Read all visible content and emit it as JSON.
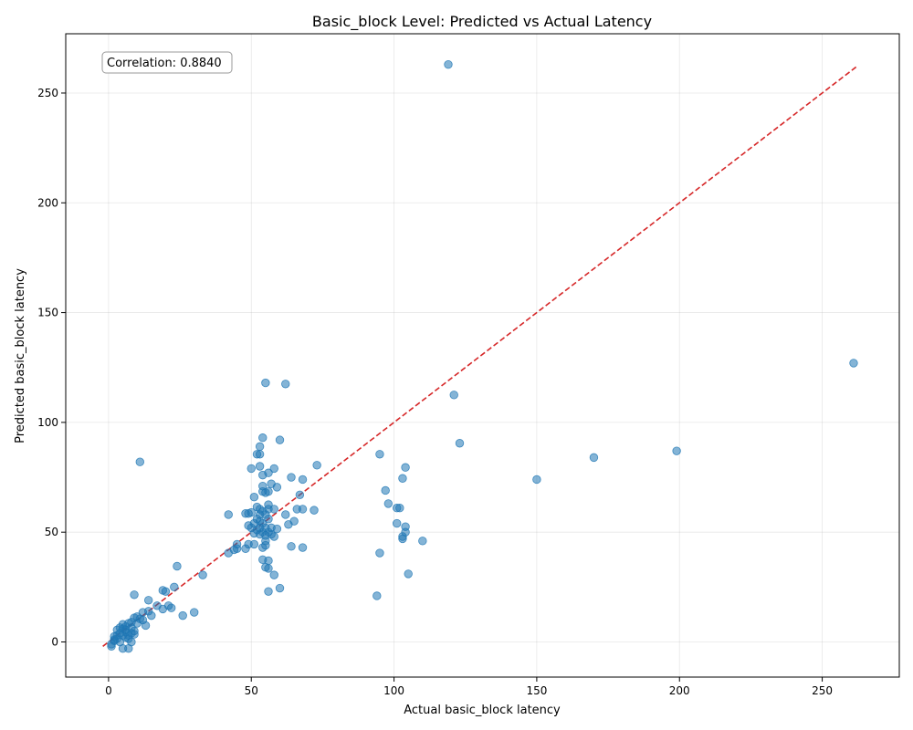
{
  "chart_data": {
    "type": "scatter",
    "title": "Basic_block Level: Predicted vs Actual Latency",
    "xlabel": "Actual basic_block latency",
    "ylabel": "Predicted basic_block latency",
    "xlim": [
      -15,
      277
    ],
    "ylim": [
      -16,
      277
    ],
    "xticks": [
      0,
      50,
      100,
      150,
      200,
      250
    ],
    "yticks": [
      0,
      50,
      100,
      150,
      200,
      250
    ],
    "grid": true,
    "point_color": "#1f77b4",
    "reference_line": {
      "from": [
        -2,
        -2
      ],
      "to": [
        262,
        262
      ],
      "color": "#d62728",
      "style": "dashed"
    },
    "annotation": {
      "text": "Correlation: 0.8840",
      "position": "top-left"
    },
    "points": [
      [
        119,
        263
      ],
      [
        261,
        127
      ],
      [
        199,
        87
      ],
      [
        170,
        84
      ],
      [
        150,
        74
      ],
      [
        123,
        90.5
      ],
      [
        121,
        112.5
      ],
      [
        11,
        82
      ],
      [
        55,
        118
      ],
      [
        62,
        117.5
      ],
      [
        54,
        93
      ],
      [
        60,
        92
      ],
      [
        53,
        89
      ],
      [
        52,
        85.5
      ],
      [
        53,
        85.5
      ],
      [
        73,
        80.5
      ],
      [
        53,
        80
      ],
      [
        50,
        79
      ],
      [
        58,
        79
      ],
      [
        54,
        76
      ],
      [
        56,
        77
      ],
      [
        64,
        75
      ],
      [
        68,
        74
      ],
      [
        57,
        72
      ],
      [
        54,
        71
      ],
      [
        59,
        70.5
      ],
      [
        55,
        68
      ],
      [
        56,
        68.5
      ],
      [
        54,
        68.5
      ],
      [
        67,
        67
      ],
      [
        51,
        66
      ],
      [
        56,
        62.5
      ],
      [
        52,
        61.5
      ],
      [
        53,
        60.5
      ],
      [
        56,
        60.5
      ],
      [
        58,
        60.5
      ],
      [
        66,
        60.5
      ],
      [
        68,
        60.5
      ],
      [
        72,
        60
      ],
      [
        54,
        59.5
      ],
      [
        50,
        59
      ],
      [
        48,
        58.5
      ],
      [
        49,
        58.5
      ],
      [
        42,
        58
      ],
      [
        53,
        58
      ],
      [
        55,
        58
      ],
      [
        62,
        58
      ],
      [
        52,
        56
      ],
      [
        56,
        56
      ],
      [
        53,
        55
      ],
      [
        65,
        55
      ],
      [
        51,
        54
      ],
      [
        54,
        54
      ],
      [
        63,
        53.5
      ],
      [
        49,
        53
      ],
      [
        50,
        52
      ],
      [
        53,
        52
      ],
      [
        55,
        52
      ],
      [
        57,
        52
      ],
      [
        59,
        51.5
      ],
      [
        52,
        51
      ],
      [
        54,
        50
      ],
      [
        56,
        50
      ],
      [
        51,
        49.5
      ],
      [
        53,
        49
      ],
      [
        55,
        48.5
      ],
      [
        57,
        49
      ],
      [
        58,
        48
      ],
      [
        55,
        46
      ],
      [
        55,
        44
      ],
      [
        54,
        43
      ],
      [
        49,
        44.5
      ],
      [
        51,
        44.5
      ],
      [
        45,
        44.5
      ],
      [
        45,
        42.5
      ],
      [
        44,
        42
      ],
      [
        42,
        40.5
      ],
      [
        48,
        42.5
      ],
      [
        64,
        43.5
      ],
      [
        68,
        43
      ],
      [
        54,
        37.5
      ],
      [
        56,
        37
      ],
      [
        55,
        34
      ],
      [
        56,
        33.5
      ],
      [
        58,
        30.5
      ],
      [
        60,
        24.5
      ],
      [
        56,
        23
      ],
      [
        24,
        34.5
      ],
      [
        33,
        30.5
      ],
      [
        23,
        25
      ],
      [
        19,
        23.5
      ],
      [
        20,
        23
      ],
      [
        9,
        21.5
      ],
      [
        14,
        19
      ],
      [
        17,
        16.5
      ],
      [
        21,
        16.5
      ],
      [
        22,
        15.5
      ],
      [
        19,
        15
      ],
      [
        26,
        12
      ],
      [
        30,
        13.5
      ],
      [
        15,
        12
      ],
      [
        14,
        14
      ],
      [
        12,
        13.5
      ],
      [
        13,
        7.5
      ],
      [
        10,
        11.5
      ],
      [
        9,
        11
      ],
      [
        11,
        10.5
      ],
      [
        8,
        9
      ],
      [
        7,
        8.5
      ],
      [
        6,
        7
      ],
      [
        5,
        8
      ],
      [
        4,
        6.5
      ],
      [
        3,
        5.5
      ],
      [
        4,
        4
      ],
      [
        5,
        3
      ],
      [
        6,
        2
      ],
      [
        7,
        1.5
      ],
      [
        8,
        0
      ],
      [
        3,
        1.5
      ],
      [
        2,
        0.5
      ],
      [
        1,
        -1
      ],
      [
        1,
        -2
      ],
      [
        5,
        -3
      ],
      [
        7,
        -3
      ],
      [
        2,
        1
      ],
      [
        9,
        5
      ],
      [
        8,
        6.5
      ],
      [
        10,
        8.5
      ],
      [
        12,
        10
      ],
      [
        6,
        4.5
      ],
      [
        9,
        3.5
      ],
      [
        3,
        3
      ],
      [
        4,
        0
      ],
      [
        2,
        2.5
      ],
      [
        6,
        5.5
      ],
      [
        5,
        6
      ],
      [
        8,
        4
      ],
      [
        7,
        3
      ],
      [
        101,
        61
      ],
      [
        102,
        61
      ],
      [
        98,
        63
      ],
      [
        97,
        69
      ],
      [
        95,
        85.5
      ],
      [
        104,
        79.5
      ],
      [
        103,
        74.5
      ],
      [
        101,
        54
      ],
      [
        104,
        52.5
      ],
      [
        104,
        50
      ],
      [
        103,
        48
      ],
      [
        103,
        47
      ],
      [
        110,
        46
      ],
      [
        95,
        40.5
      ],
      [
        105,
        31
      ],
      [
        94,
        21
      ]
    ]
  }
}
